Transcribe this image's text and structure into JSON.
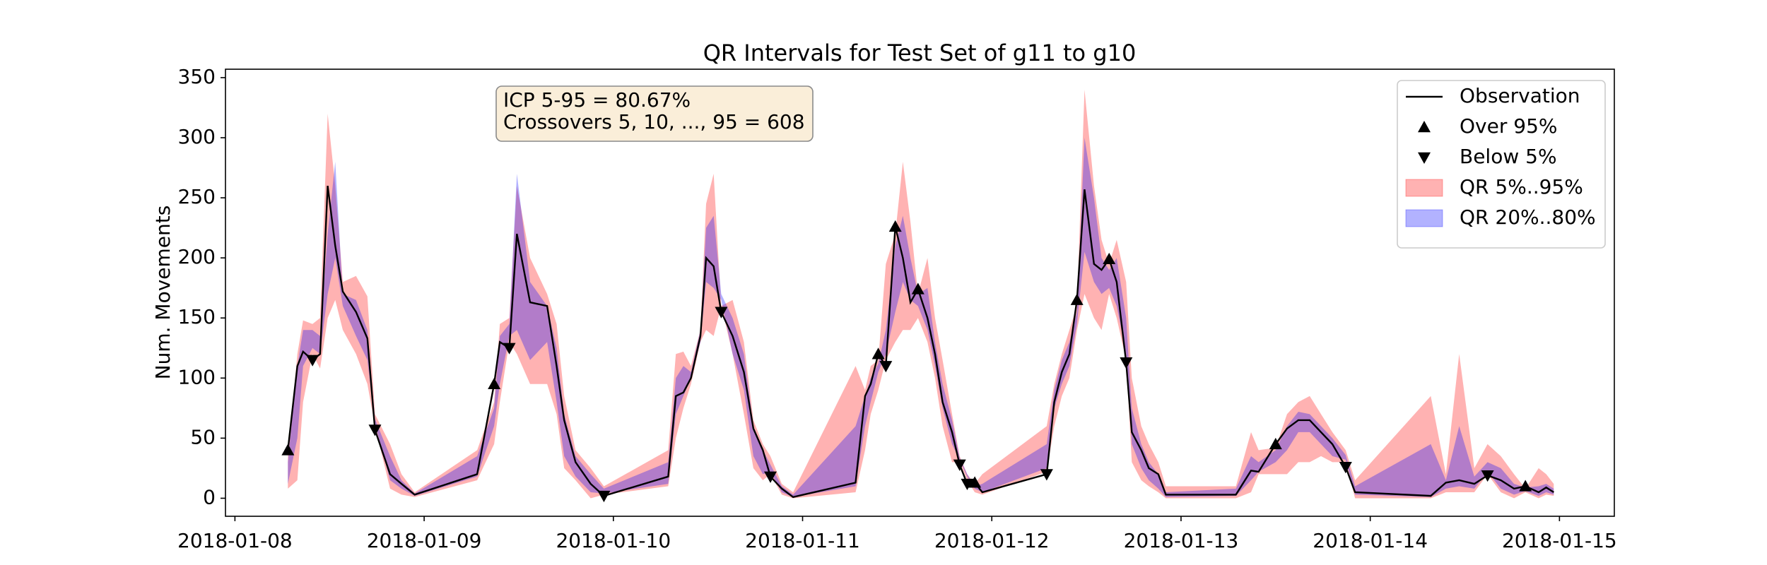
{
  "chart_data": {
    "type": "line",
    "title": "QR Intervals for Test Set of g11 to g10",
    "y_label": "Num. Movements",
    "annotation": [
      "ICP 5-95 = 80.67%",
      "Crossovers 5, 10, ..., 95 = 608"
    ],
    "xlim": [
      -0.05,
      7.29
    ],
    "ylim": [
      -15,
      357
    ],
    "xticks": [
      {
        "value": 0,
        "label": "2018-01-08"
      },
      {
        "value": 1,
        "label": "2018-01-09"
      },
      {
        "value": 2,
        "label": "2018-01-10"
      },
      {
        "value": 3,
        "label": "2018-01-11"
      },
      {
        "value": 4,
        "label": "2018-01-12"
      },
      {
        "value": 5,
        "label": "2018-01-13"
      },
      {
        "value": 6,
        "label": "2018-01-14"
      },
      {
        "value": 7,
        "label": "2018-01-15"
      }
    ],
    "yticks": [
      0,
      50,
      100,
      150,
      200,
      250,
      300,
      350
    ],
    "legend": "upper right",
    "x": [
      0.28,
      0.33,
      0.36,
      0.41,
      0.45,
      0.49,
      0.53,
      0.57,
      0.64,
      0.7,
      0.74,
      0.82,
      0.88,
      0.95,
      1.28,
      1.37,
      1.4,
      1.45,
      1.49,
      1.56,
      1.65,
      1.7,
      1.74,
      1.8,
      1.88,
      1.95,
      2.29,
      2.33,
      2.37,
      2.41,
      2.46,
      2.49,
      2.53,
      2.57,
      2.63,
      2.69,
      2.74,
      2.79,
      2.83,
      2.89,
      2.95,
      3.28,
      3.33,
      3.36,
      3.4,
      3.44,
      3.49,
      3.53,
      3.57,
      3.61,
      3.66,
      3.7,
      3.74,
      3.79,
      3.83,
      3.87,
      3.91,
      3.95,
      4.29,
      4.33,
      4.37,
      4.41,
      4.45,
      4.49,
      4.54,
      4.58,
      4.62,
      4.66,
      4.71,
      4.74,
      4.79,
      4.83,
      4.88,
      4.92,
      5.29,
      5.37,
      5.41,
      5.5,
      5.56,
      5.62,
      5.68,
      5.74,
      5.8,
      5.87,
      5.92,
      6.32,
      6.4,
      6.47,
      6.55,
      6.62,
      6.69,
      6.76,
      6.82,
      6.89,
      6.93,
      6.97
    ],
    "bands": [
      {
        "name": "QR 5%..95%",
        "color": "#ff0000",
        "alpha": 0.3,
        "lower": [
          8,
          15,
          80,
          120,
          108,
          150,
          165,
          140,
          120,
          95,
          60,
          8,
          3,
          1,
          15,
          45,
          80,
          130,
          120,
          95,
          95,
          70,
          25,
          15,
          0,
          3,
          10,
          50,
          75,
          95,
          130,
          140,
          135,
          160,
          120,
          70,
          25,
          15,
          20,
          3,
          0,
          5,
          40,
          70,
          90,
          115,
          130,
          140,
          140,
          150,
          130,
          100,
          60,
          30,
          30,
          15,
          5,
          3,
          22,
          60,
          85,
          100,
          140,
          170,
          150,
          140,
          170,
          150,
          115,
          30,
          15,
          10,
          5,
          0,
          0,
          5,
          20,
          20,
          20,
          30,
          30,
          35,
          30,
          30,
          0,
          0,
          5,
          5,
          5,
          20,
          5,
          0,
          5,
          0,
          3,
          2
        ],
        "upper": [
          35,
          120,
          148,
          145,
          150,
          320,
          260,
          180,
          185,
          168,
          70,
          45,
          20,
          5,
          40,
          80,
          145,
          150,
          260,
          200,
          170,
          145,
          85,
          40,
          25,
          10,
          40,
          120,
          122,
          110,
          140,
          245,
          270,
          160,
          165,
          130,
          65,
          45,
          35,
          12,
          5,
          110,
          90,
          110,
          115,
          195,
          220,
          280,
          230,
          170,
          200,
          150,
          115,
          70,
          35,
          20,
          12,
          20,
          60,
          95,
          120,
          140,
          160,
          340,
          260,
          215,
          195,
          215,
          180,
          100,
          60,
          45,
          30,
          10,
          10,
          55,
          40,
          42,
          70,
          80,
          85,
          70,
          55,
          40,
          15,
          85,
          20,
          120,
          25,
          45,
          35,
          20,
          8,
          25,
          20,
          12
        ]
      },
      {
        "name": "QR 20%..80%",
        "color": "#0000ff",
        "alpha": 0.3,
        "lower": [
          12,
          50,
          110,
          125,
          120,
          170,
          200,
          160,
          135,
          115,
          62,
          15,
          8,
          2,
          18,
          60,
          95,
          135,
          140,
          115,
          130,
          80,
          35,
          18,
          5,
          4,
          12,
          70,
          85,
          100,
          130,
          180,
          175,
          165,
          120,
          90,
          35,
          20,
          22,
          5,
          1,
          10,
          60,
          80,
          105,
          120,
          155,
          180,
          165,
          160,
          140,
          110,
          75,
          45,
          32,
          18,
          8,
          5,
          25,
          75,
          95,
          110,
          145,
          205,
          180,
          170,
          175,
          160,
          120,
          45,
          25,
          15,
          8,
          1,
          2,
          15,
          22,
          30,
          40,
          55,
          55,
          45,
          35,
          32,
          3,
          1,
          8,
          10,
          8,
          22,
          8,
          3,
          6,
          2,
          5,
          3
        ],
        "upper": [
          30,
          110,
          140,
          140,
          135,
          220,
          280,
          170,
          165,
          140,
          66,
          35,
          15,
          4,
          35,
          75,
          135,
          145,
          270,
          180,
          160,
          125,
          70,
          35,
          20,
          8,
          30,
          100,
          110,
          105,
          140,
          225,
          235,
          170,
          150,
          120,
          60,
          40,
          28,
          10,
          3,
          60,
          85,
          100,
          112,
          140,
          210,
          235,
          200,
          170,
          175,
          130,
          95,
          65,
          34,
          20,
          10,
          12,
          45,
          90,
          115,
          130,
          155,
          300,
          250,
          200,
          190,
          200,
          150,
          75,
          45,
          30,
          20,
          5,
          8,
          35,
          30,
          40,
          60,
          72,
          70,
          60,
          50,
          36,
          10,
          45,
          15,
          60,
          18,
          30,
          25,
          12,
          9,
          10,
          12,
          8
        ]
      }
    ],
    "series": [
      {
        "name": "Observation",
        "color": "#000000",
        "kind": "line",
        "values": [
          40,
          110,
          122,
          115,
          120,
          260,
          210,
          172,
          155,
          133,
          57,
          20,
          12,
          3,
          20,
          95,
          130,
          125,
          220,
          163,
          160,
          110,
          65,
          30,
          12,
          2,
          18,
          85,
          88,
          100,
          135,
          200,
          193,
          155,
          135,
          105,
          58,
          40,
          18,
          8,
          1,
          13,
          85,
          95,
          120,
          110,
          226,
          200,
          163,
          174,
          150,
          120,
          80,
          55,
          28,
          12,
          13,
          5,
          20,
          80,
          105,
          120,
          165,
          257,
          195,
          190,
          199,
          180,
          113,
          55,
          40,
          25,
          20,
          3,
          3,
          23,
          22,
          45,
          58,
          65,
          65,
          55,
          45,
          26,
          5,
          2,
          13,
          15,
          12,
          19,
          15,
          8,
          10,
          5,
          9,
          5
        ]
      },
      {
        "name": "Over 95%",
        "color": "#000000",
        "kind": "triangle-up",
        "x": [
          0.28,
          1.37,
          3.4,
          3.49,
          3.61,
          3.91,
          4.45,
          4.62,
          5.5,
          6.82
        ],
        "values": [
          40,
          95,
          120,
          226,
          174,
          13,
          165,
          199,
          45,
          10
        ]
      },
      {
        "name": "Below 5%",
        "color": "#000000",
        "kind": "triangle-down",
        "x": [
          0.41,
          0.74,
          1.45,
          1.95,
          2.57,
          2.83,
          3.44,
          3.83,
          3.87,
          4.29,
          4.71,
          5.87,
          6.62
        ],
        "values": [
          115,
          57,
          125,
          2,
          155,
          18,
          110,
          28,
          12,
          20,
          113,
          26,
          19
        ]
      }
    ]
  }
}
